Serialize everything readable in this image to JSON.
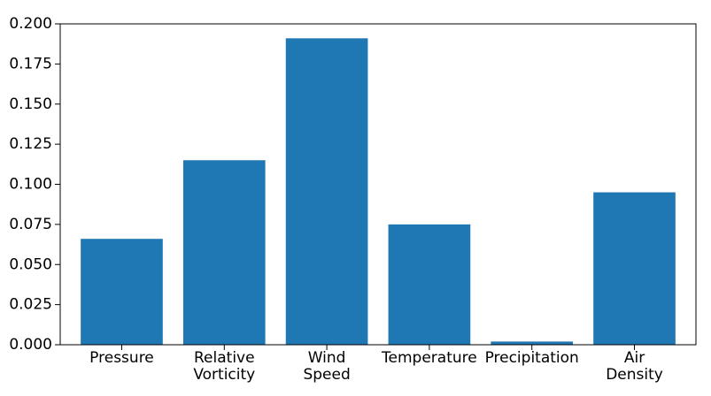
{
  "chart_data": {
    "type": "bar",
    "categories": [
      [
        "Pressure"
      ],
      [
        "Relative",
        "Vorticity"
      ],
      [
        "Wind",
        "Speed"
      ],
      [
        "Temperature"
      ],
      [
        "Precipitation"
      ],
      [
        "Air",
        "Density"
      ]
    ],
    "values": [
      0.066,
      0.115,
      0.191,
      0.075,
      0.002,
      0.095
    ],
    "ylim": [
      0,
      0.2
    ],
    "yticks": [
      "0.000",
      "0.025",
      "0.050",
      "0.075",
      "0.100",
      "0.125",
      "0.150",
      "0.175",
      "0.200"
    ],
    "title": "",
    "xlabel": "",
    "ylabel": "",
    "grid": false,
    "bar_color": "#1f77b4"
  }
}
